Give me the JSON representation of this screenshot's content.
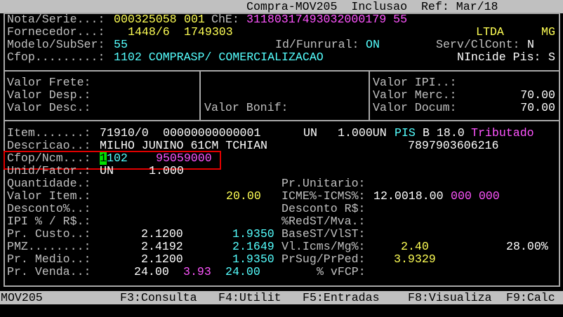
{
  "titlebar": {
    "title": "Compra-MOV205  Inclusao  Ref: Mar/18"
  },
  "header": {
    "nota_label": "Nota/Serie...:",
    "nota": "000325058",
    "serie": "001",
    "che_label": "ChE:",
    "che": "31180317493032000179 55",
    "fornecedor_label": "Fornecedor...:",
    "fornecedor_code": "1448/6",
    "fornecedor_id": "1749303",
    "fornecedor_type": "LTDA",
    "uf": "MG",
    "modelo_label": "Modelo/SubSer:",
    "modelo": "55",
    "funrural_label": "Id/Funrural:",
    "funrural": "ON",
    "serv_label": "Serv/ClCont:",
    "serv": "N",
    "cfop_label": "Cfop.........:",
    "cfop": "1102 COMPRASP/ COMERCIALIZACAO",
    "nincide_label": "NIncide Pis:",
    "nincide": "S"
  },
  "totals": {
    "frete_label": "Valor Frete:",
    "desp_label": "Valor Desp.:",
    "desc_label": "Valor Desc.:",
    "bonif_label": "Valor Bonif:",
    "ipi_label": "Valor IPI..:",
    "merc_label": "Valor Merc.:",
    "merc": "70.00",
    "docum_label": "Valor Docum:",
    "docum": "70.00"
  },
  "item": {
    "item_label": "Item.......:",
    "item_code": "71910/0",
    "item_ref": "00000000000001",
    "unit": "UN",
    "qty_unit": "1.000UN",
    "pis_label": "PIS",
    "pis_value": "B 18.0",
    "tributacao": "Tributado",
    "descricao_label": "Descricao..:",
    "descricao": "MILHO JUNINO 61CM TCHIAN",
    "ean": "7897903606216",
    "cfop_ncm_label": "Cfop/Ncm...:",
    "cfop_first": "1",
    "cfop_rest": "102",
    "ncm": "95059000",
    "unid_label": "Unid/Fator.:",
    "unid": "UN",
    "fator": "1.000",
    "quantidade_label": "Quantidade.:",
    "pr_unitario_label": "Pr.Unitario:",
    "valor_item_label": "Valor Item.:",
    "valor_item": "20.00",
    "icms_label": "ICME%-ICMS%:",
    "icms": "12.0018.00",
    "icms_extra": "000 000",
    "desconto_pct_label": "Desconto%..:",
    "desconto_rs_label": "Desconto R$:",
    "ipi_label": "IPI % / R$.:",
    "redst_label": "%RedST/Mva.:",
    "custo_label": "Pr. Custo..:",
    "custo_1": "2.1200",
    "custo_2": "1.9350",
    "basest_label": "BaseST/VlST:",
    "pmz_label": "PMZ........:",
    "pmz_1": "2.4192",
    "pmz_2": "2.1649",
    "vlicms_label": "Vl.Icms/Mg%:",
    "vlicms": "2.40",
    "margem": "28.00%",
    "medio_label": "Pr. Medio..:",
    "medio_1": "2.1200",
    "medio_2": "1.9350",
    "prsug_label": "PrSug/PrPed:",
    "prsug": "3.9329",
    "venda_label": "Pr. Venda..:",
    "venda_1": "24.00",
    "venda_2": "3.93",
    "venda_3": "24.00",
    "vfcp_label": "% vFCP:"
  },
  "statusbar": {
    "program": "MOV205",
    "f3": "F3:Consulta",
    "f4": "F4:Utilit",
    "f5": "F5:Entradas",
    "f8": "F8:Visualiza",
    "f9": "F9:Calc"
  },
  "colors": {
    "label": "#c0c0c0",
    "yellow": "#ffff55",
    "magenta": "#ff55ff",
    "cyan": "#55ffff",
    "cursor": "#00e000",
    "highlight_box": "#e00000"
  }
}
